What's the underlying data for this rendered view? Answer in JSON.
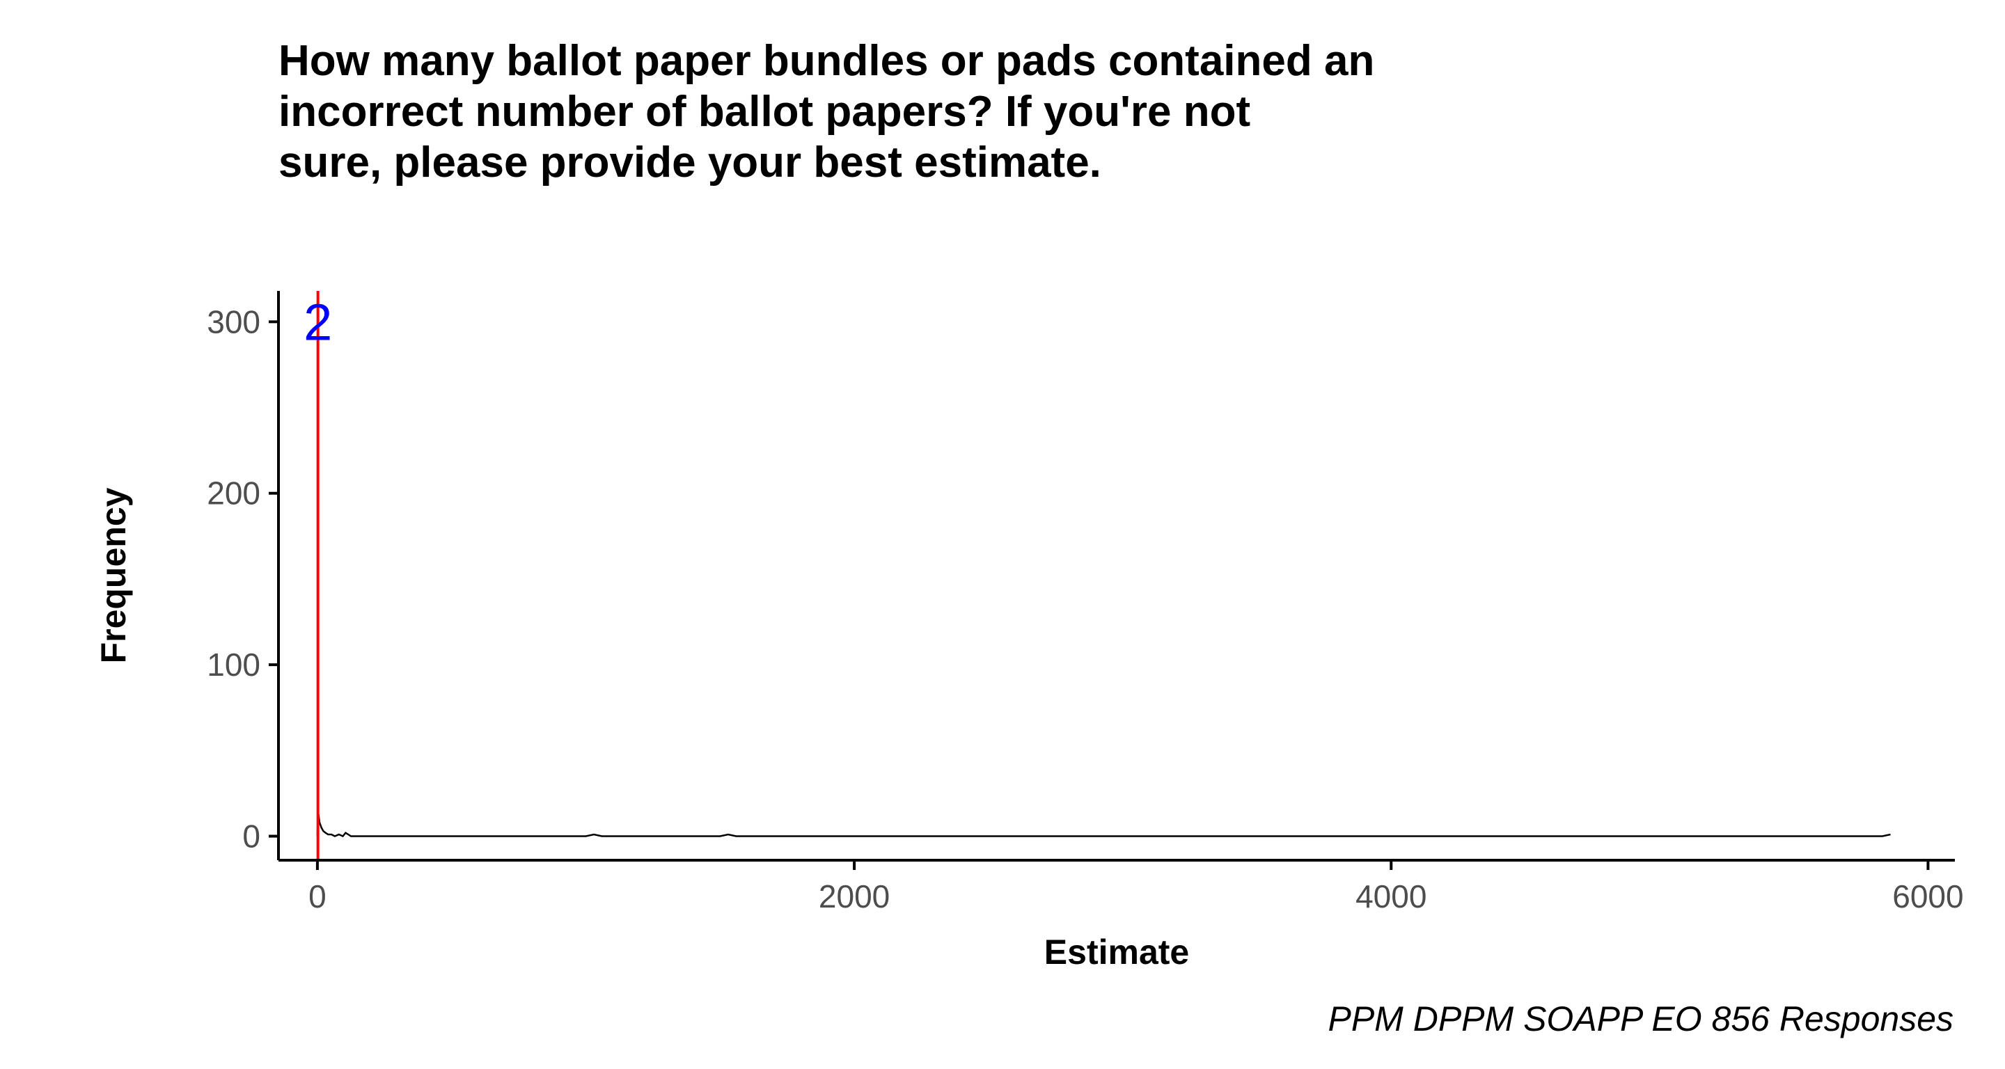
{
  "chart_data": {
    "type": "line",
    "title_lines": [
      "How many ballot paper bundles or pads contained an",
      "incorrect number of ballot papers? If you're not",
      "sure, please provide your best estimate."
    ],
    "xlabel": "Estimate",
    "ylabel": "Frequency",
    "caption": "PPM DPPM SOAPP EO 856 Responses",
    "xlim": [
      -145,
      6100
    ],
    "ylim": [
      -14,
      318
    ],
    "x_ticks": [
      0,
      2000,
      4000,
      6000
    ],
    "x_tick_labels": [
      "0",
      "2000",
      "4000",
      "6000"
    ],
    "y_ticks": [
      0,
      100,
      200,
      300
    ],
    "y_tick_labels": [
      "0",
      "100",
      "200",
      "300"
    ],
    "grid": false,
    "legend": "none",
    "series": [
      {
        "color": "#000000",
        "points": [
          [
            0,
            0
          ],
          [
            2,
            15
          ],
          [
            8,
            8
          ],
          [
            15,
            5
          ],
          [
            22,
            3
          ],
          [
            30,
            2
          ],
          [
            40,
            1
          ],
          [
            52,
            1
          ],
          [
            65,
            0
          ],
          [
            80,
            1
          ],
          [
            95,
            0
          ],
          [
            105,
            2
          ],
          [
            115,
            1
          ],
          [
            125,
            0
          ],
          [
            200,
            0
          ],
          [
            1000,
            0
          ],
          [
            1030,
            1
          ],
          [
            1060,
            0
          ],
          [
            1500,
            0
          ],
          [
            1530,
            1
          ],
          [
            1560,
            0
          ],
          [
            3000,
            0
          ],
          [
            5000,
            0
          ],
          [
            5830,
            0
          ],
          [
            5860,
            1
          ]
        ]
      }
    ],
    "marker": {
      "x": 2,
      "label": "2",
      "line_color": "#ff0000",
      "label_color": "#0000ff",
      "label_y": 300
    },
    "colors": {
      "axis": "#000000",
      "tick_label": "#4d4d4d",
      "background": "#ffffff"
    }
  }
}
